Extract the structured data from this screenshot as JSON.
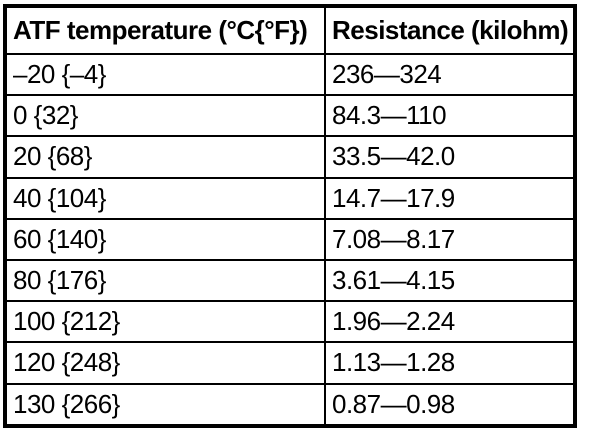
{
  "chart_data": {
    "type": "table",
    "columns": [
      "ATF temperature (°C{°F})",
      "Resistance (kilohm)"
    ],
    "rows": [
      [
        "–20 {–4}",
        "236—324"
      ],
      [
        "0 {32}",
        "84.3—110"
      ],
      [
        "20 {68}",
        "33.5—42.0"
      ],
      [
        "40 {104}",
        "14.7—17.9"
      ],
      [
        "60 {140}",
        "7.08—8.17"
      ],
      [
        "80 {176}",
        "3.61—4.15"
      ],
      [
        "100 {212}",
        "1.96—2.24"
      ],
      [
        "120 {248}",
        "1.13—1.28"
      ],
      [
        "130 {266}",
        "0.87—0.98"
      ]
    ],
    "layout": {
      "grid": true,
      "header_bold": true
    }
  },
  "colors": {
    "border": "#000000",
    "background": "#ffffff",
    "text": "#000000"
  }
}
